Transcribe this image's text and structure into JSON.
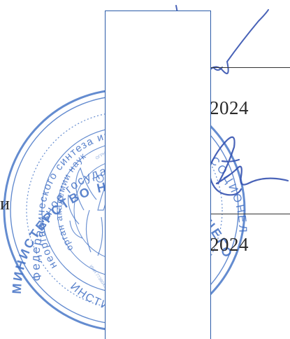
{
  "document": {
    "date_1_year": "2024",
    "date_2_year": "2024",
    "left_fragment": "и"
  },
  "seal": {
    "outer_ring_text": "МИНИСТЕРСТВО НАУКИ И ВЫСШЕГО",
    "ring_2_text": "Федеральное государствен",
    "ring_3_text": "неорганического синтеза им",
    "ring_4_text": "орган академии наук",
    "ring_5_text": "ИНСТИТУТ Российской",
    "right_fragment_text": "СОЦИОНЕЛ",
    "bottom_text": "ИНСТИТ",
    "ink_color": "#3f6ec4"
  },
  "signature": {
    "ink_color": "#3552b0"
  }
}
